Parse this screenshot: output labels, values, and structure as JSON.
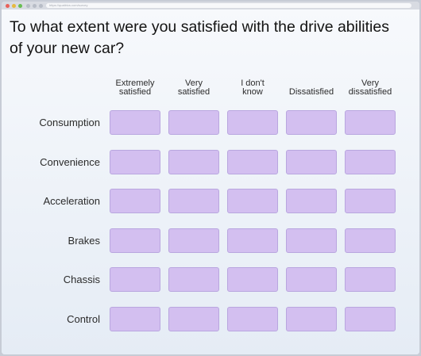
{
  "browser": {
    "url": "https://qualtrics.com/survey"
  },
  "question": "To what extent were you satisfied with the drive abilities of your new car?",
  "columns": [
    "Extremely\nsatisfied",
    "Very\nsatisfied",
    "I don't\nknow",
    "Dissatisfied",
    "Very\ndissatisfied"
  ],
  "rows": [
    "Consumption",
    "Convenience",
    "Acceleration",
    "Brakes",
    "Chassis",
    "Control"
  ],
  "colors": {
    "cell": "#d3bff0",
    "cell_border": "#b9a6df"
  }
}
